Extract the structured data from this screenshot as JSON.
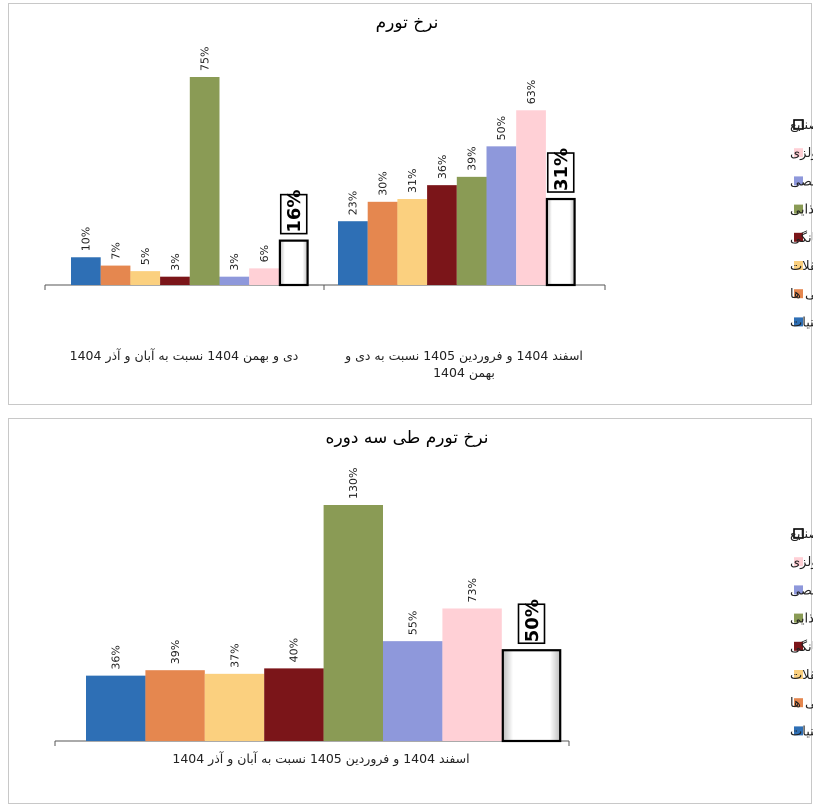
{
  "legend": [
    {
      "name": "همه صنایع",
      "color": "#ffffff"
    },
    {
      "name": "محصولات سلولزی",
      "color": "#ffd0d6"
    },
    {
      "name": "محصولات مراقبت شخصی",
      "color": "#8e98db"
    },
    {
      "name": "مواد غذایی",
      "color": "#8a9b55"
    },
    {
      "name": "محصولات مراقبت خانگی",
      "color": "#7b1519"
    },
    {
      "name": "تنقلات",
      "color": "#fbd07f"
    },
    {
      "name": "نوشیدنی ها",
      "color": "#e5874f"
    },
    {
      "name": "لبنیات",
      "color": "#2e6fb5"
    }
  ],
  "chart_data": [
    {
      "type": "bar",
      "title": "نرخ تورم",
      "categories": [
        "دی و بهمن 1404 نسبت به آبان و آذر 1404",
        "اسفند 1404 و فروردین 1405 نسبت به دی و بهمن 1404"
      ],
      "series": [
        {
          "name": "لبنیات",
          "values": [
            10,
            23
          ],
          "labels": [
            "10%",
            "23%"
          ]
        },
        {
          "name": "نوشیدنی ها",
          "values": [
            7,
            30
          ],
          "labels": [
            "7%",
            "30%"
          ]
        },
        {
          "name": "تنقلات",
          "values": [
            5,
            31
          ],
          "labels": [
            "5%",
            "31%"
          ]
        },
        {
          "name": "محصولات مراقبت خانگی",
          "values": [
            3,
            36
          ],
          "labels": [
            "3%",
            "36%"
          ]
        },
        {
          "name": "مواد غذایی",
          "values": [
            75,
            39
          ],
          "labels": [
            "75%",
            "39%"
          ]
        },
        {
          "name": "محصولات مراقبت شخصی",
          "values": [
            3,
            50
          ],
          "labels": [
            "3%",
            "50%"
          ]
        },
        {
          "name": "محصولات سلولزی",
          "values": [
            6,
            63
          ],
          "labels": [
            "6%",
            "63%"
          ]
        },
        {
          "name": "همه صنایع",
          "values": [
            16,
            31
          ],
          "labels": [
            "16%",
            "31%"
          ]
        }
      ],
      "ylim": [
        0,
        80
      ],
      "legend": "right"
    },
    {
      "type": "bar",
      "title": "نرخ تورم طی سه دوره",
      "categories": [
        "اسفند 1404 و فروردین 1405 نسبت به آبان و آذر 1404"
      ],
      "series": [
        {
          "name": "لبنیات",
          "values": [
            36
          ],
          "labels": [
            "36%"
          ]
        },
        {
          "name": "نوشیدنی ها",
          "values": [
            39
          ],
          "labels": [
            "39%"
          ]
        },
        {
          "name": "تنقلات",
          "values": [
            37
          ],
          "labels": [
            "37%"
          ]
        },
        {
          "name": "محصولات مراقبت خانگی",
          "values": [
            40
          ],
          "labels": [
            "40%"
          ]
        },
        {
          "name": "مواد غذایی",
          "values": [
            130
          ],
          "labels": [
            "130%"
          ]
        },
        {
          "name": "محصولات مراقبت شخصی",
          "values": [
            55
          ],
          "labels": [
            "55%"
          ]
        },
        {
          "name": "محصولات سلولزی",
          "values": [
            73
          ],
          "labels": [
            "73%"
          ]
        },
        {
          "name": "همه صنایع",
          "values": [
            50
          ],
          "labels": [
            "50%"
          ]
        }
      ],
      "ylim": [
        0,
        140
      ],
      "legend": "right"
    }
  ]
}
